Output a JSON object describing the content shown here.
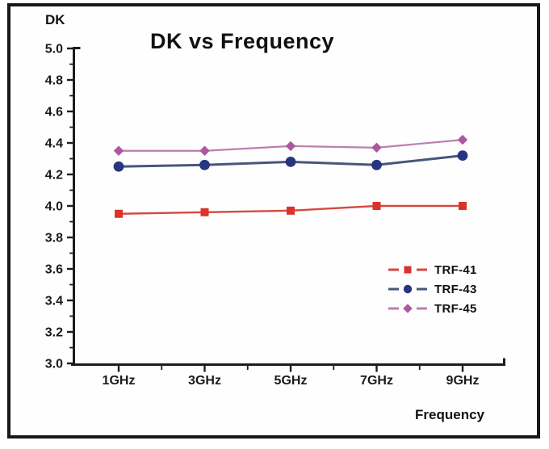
{
  "chart_data": {
    "type": "line",
    "title": "DK vs Frequency",
    "xlabel": "Frequency",
    "ylabel": "DK",
    "categories": [
      "1GHz",
      "3GHz",
      "5GHz",
      "7GHz",
      "9GHz"
    ],
    "ylim": [
      3.0,
      5.0
    ],
    "y_ticks": [
      "3.0",
      "3.2",
      "3.4",
      "3.6",
      "3.8",
      "4.0",
      "4.2",
      "4.4",
      "4.6",
      "4.8",
      "5.0"
    ],
    "y_minor_tick_step": 0.1,
    "x_minor_ticks": "midpoints-between-categories",
    "grid": false,
    "legend_position": "inside-lower-right",
    "series": [
      {
        "name": "TRF-41",
        "marker": "square",
        "color": "#d9342b",
        "line_color": "#d44a40",
        "line_width": 2.4,
        "values": [
          3.95,
          3.96,
          3.97,
          4.0,
          4.0
        ]
      },
      {
        "name": "TRF-43",
        "marker": "circle",
        "color": "#28357f",
        "line_color": "#47567a",
        "line_width": 3.0,
        "values": [
          4.25,
          4.26,
          4.28,
          4.26,
          4.32
        ]
      },
      {
        "name": "TRF-45",
        "marker": "diamond",
        "color": "#ac589e",
        "line_color": "#bc7fb0",
        "line_width": 2.2,
        "values": [
          4.35,
          4.35,
          4.38,
          4.37,
          4.42
        ]
      }
    ]
  },
  "style": {
    "frame_color": "#181818",
    "axis_color": "#1c1c1c",
    "text_color": "#1a1a1a",
    "background": "#fefefe"
  }
}
